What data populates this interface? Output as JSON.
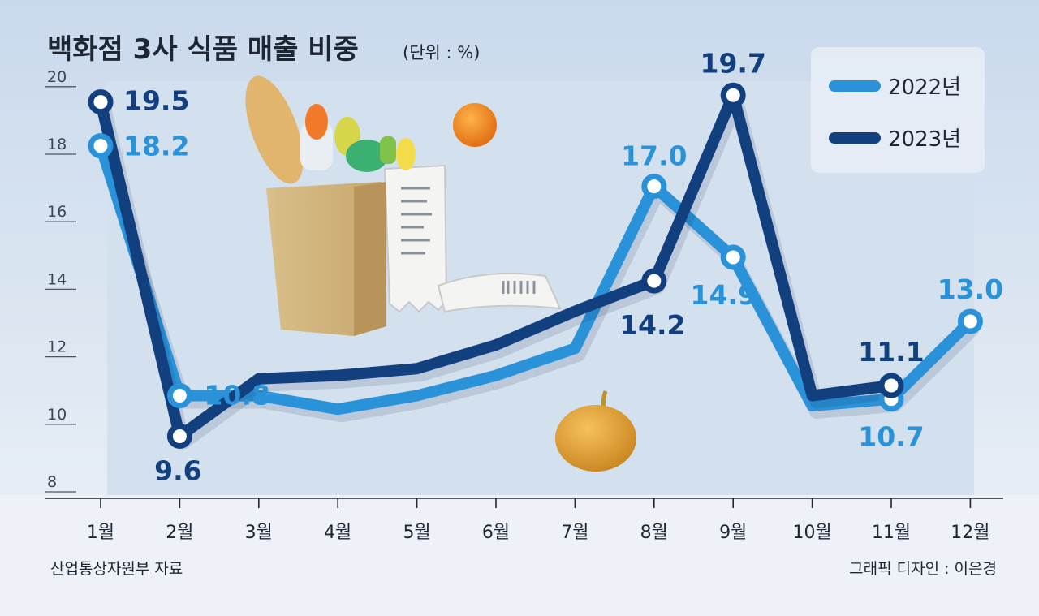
{
  "chart_data": {
    "type": "line",
    "title": "백화점 3사 식품 매출 비중",
    "unit": "(단위 : %)",
    "categories": [
      "1월",
      "2월",
      "3월",
      "4월",
      "5월",
      "6월",
      "7월",
      "8월",
      "9월",
      "10월",
      "11월",
      "12월"
    ],
    "ylim": [
      8,
      20
    ],
    "yticks": [
      "8",
      "10",
      "12",
      "14",
      "16",
      "18",
      "20"
    ],
    "legend_position": "top-right",
    "grid": false,
    "series": [
      {
        "name": "2022년",
        "color": "#2a92d8",
        "values": [
          18.2,
          10.8,
          10.8,
          10.4,
          10.8,
          11.4,
          12.2,
          17.0,
          14.9,
          10.5,
          10.7,
          13.0
        ],
        "point_labels": [
          "18.2",
          "10.8",
          "",
          "",
          "",
          "",
          "",
          "17.0",
          "14.9",
          "",
          "10.7",
          "13.0"
        ]
      },
      {
        "name": "2023년",
        "color": "#123f7e",
        "values": [
          19.5,
          9.6,
          11.3,
          11.4,
          11.6,
          12.3,
          13.3,
          14.2,
          19.7,
          10.8,
          11.1,
          null
        ],
        "point_labels": [
          "19.5",
          "9.6",
          "",
          "",
          "",
          "",
          "",
          "14.2",
          "19.7",
          "",
          "11.1",
          ""
        ]
      }
    ]
  },
  "footer": {
    "source": "산업통상자원부 자료",
    "credit": "그래픽 디자인 : 이은경"
  }
}
